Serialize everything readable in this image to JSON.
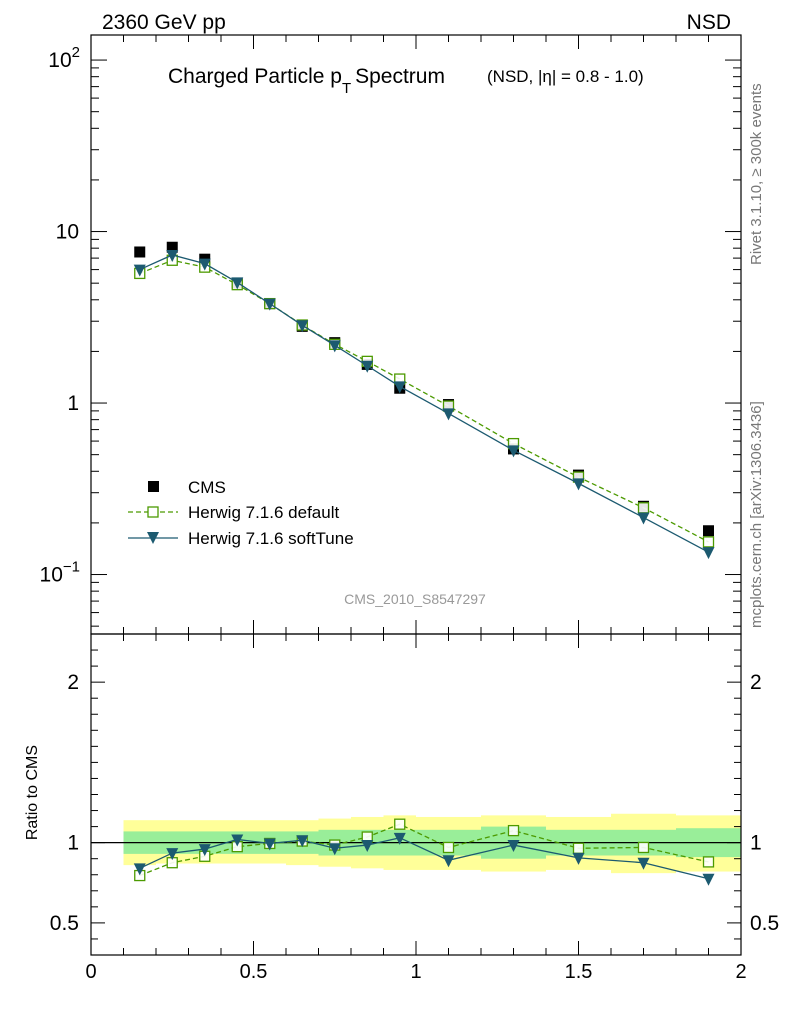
{
  "header": {
    "left": "2360 GeV pp",
    "right": "NSD"
  },
  "side_labels": {
    "rivet": "Rivet 3.1.10, ≥ 300k events",
    "mcplots": "mcplots.cern.ch [arXiv:1306.3436]"
  },
  "chart_data": [
    {
      "type": "scatter",
      "title": "Charged Particle p",
      "title_sub": "T",
      "title_rest": "Spectrum",
      "title_extra": "(NSD, |η| = 0.8 - 1.0)",
      "analysis_tag": "CMS_2010_S8547297",
      "yscale": "log",
      "xlim": [
        0,
        2
      ],
      "ylim": [
        0.045,
        140
      ],
      "ytick_labels": {
        "major": "10",
        "exp_2": "2",
        "exp_m1": "−1",
        "one": "1"
      },
      "legend_position": "bottom-left",
      "x": [
        0.15,
        0.25,
        0.35,
        0.45,
        0.55,
        0.65,
        0.75,
        0.85,
        0.95,
        1.1,
        1.3,
        1.5,
        1.7,
        1.9
      ],
      "series": [
        {
          "name": "CMS",
          "color": "#000000",
          "marker": "filled-square",
          "values": [
            7.6,
            8.1,
            6.9,
            5.0,
            3.8,
            2.8,
            2.25,
            1.68,
            1.22,
            0.98,
            0.54,
            0.38,
            0.25,
            0.18
          ]
        },
        {
          "name": "Herwig 7.1.6 default",
          "color": "#4c9a00",
          "marker": "open-square",
          "line": "dashed",
          "values": [
            5.7,
            6.8,
            6.2,
            4.9,
            3.8,
            2.85,
            2.2,
            1.75,
            1.38,
            0.96,
            0.58,
            0.37,
            0.245,
            0.155
          ]
        },
        {
          "name": "Herwig 7.1.6 softTune",
          "color": "#1c5a70",
          "marker": "down-triangle",
          "line": "solid",
          "values": [
            6.0,
            7.3,
            6.5,
            5.05,
            3.8,
            2.84,
            2.17,
            1.65,
            1.25,
            0.87,
            0.53,
            0.34,
            0.215,
            0.135
          ]
        }
      ]
    },
    {
      "type": "scatter",
      "ylabel": "Ratio to CMS",
      "xlim": [
        0,
        2
      ],
      "ylim": [
        0.3,
        2.3
      ],
      "xticks": [
        0,
        0.5,
        1,
        1.5,
        2
      ],
      "xtick_labels": [
        "0",
        "0.5",
        "1",
        "1.5",
        "2"
      ],
      "yticks": [
        0.5,
        1,
        2
      ],
      "ytick_labels": [
        "0.5",
        "1",
        "2"
      ],
      "bands": {
        "edges": [
          0.1,
          0.2,
          0.3,
          0.4,
          0.5,
          0.6,
          0.7,
          0.8,
          0.9,
          1.0,
          1.2,
          1.4,
          1.6,
          1.8,
          2.0
        ],
        "inner": {
          "color": "#99ee99",
          "lo": [
            0.93,
            0.93,
            0.93,
            0.93,
            0.93,
            0.93,
            0.92,
            0.92,
            0.92,
            0.92,
            0.9,
            0.92,
            0.92,
            0.91
          ],
          "hi": [
            1.07,
            1.07,
            1.07,
            1.07,
            1.07,
            1.07,
            1.08,
            1.08,
            1.08,
            1.08,
            1.1,
            1.08,
            1.08,
            1.09
          ]
        },
        "outer": {
          "color": "#ffff99",
          "lo": [
            0.86,
            0.87,
            0.87,
            0.87,
            0.87,
            0.86,
            0.85,
            0.84,
            0.83,
            0.83,
            0.82,
            0.83,
            0.81,
            0.82
          ],
          "hi": [
            1.14,
            1.14,
            1.14,
            1.14,
            1.14,
            1.14,
            1.15,
            1.16,
            1.17,
            1.16,
            1.17,
            1.16,
            1.18,
            1.17
          ]
        }
      },
      "x": [
        0.15,
        0.25,
        0.35,
        0.45,
        0.55,
        0.65,
        0.75,
        0.85,
        0.95,
        1.1,
        1.3,
        1.5,
        1.7,
        1.9
      ],
      "series": [
        {
          "name": "Herwig 7.1.6 default",
          "color": "#4c9a00",
          "marker": "open-square",
          "line": "dashed",
          "values": [
            0.795,
            0.875,
            0.915,
            0.975,
            0.995,
            1.01,
            0.985,
            1.035,
            1.115,
            0.97,
            1.075,
            0.965,
            0.97,
            0.88
          ]
        },
        {
          "name": "Herwig 7.1.6 softTune",
          "color": "#1c5a70",
          "marker": "down-triangle",
          "line": "solid",
          "values": [
            0.84,
            0.935,
            0.96,
            1.02,
            0.995,
            1.015,
            0.965,
            0.985,
            1.03,
            0.89,
            0.985,
            0.905,
            0.875,
            0.775
          ]
        }
      ]
    }
  ]
}
